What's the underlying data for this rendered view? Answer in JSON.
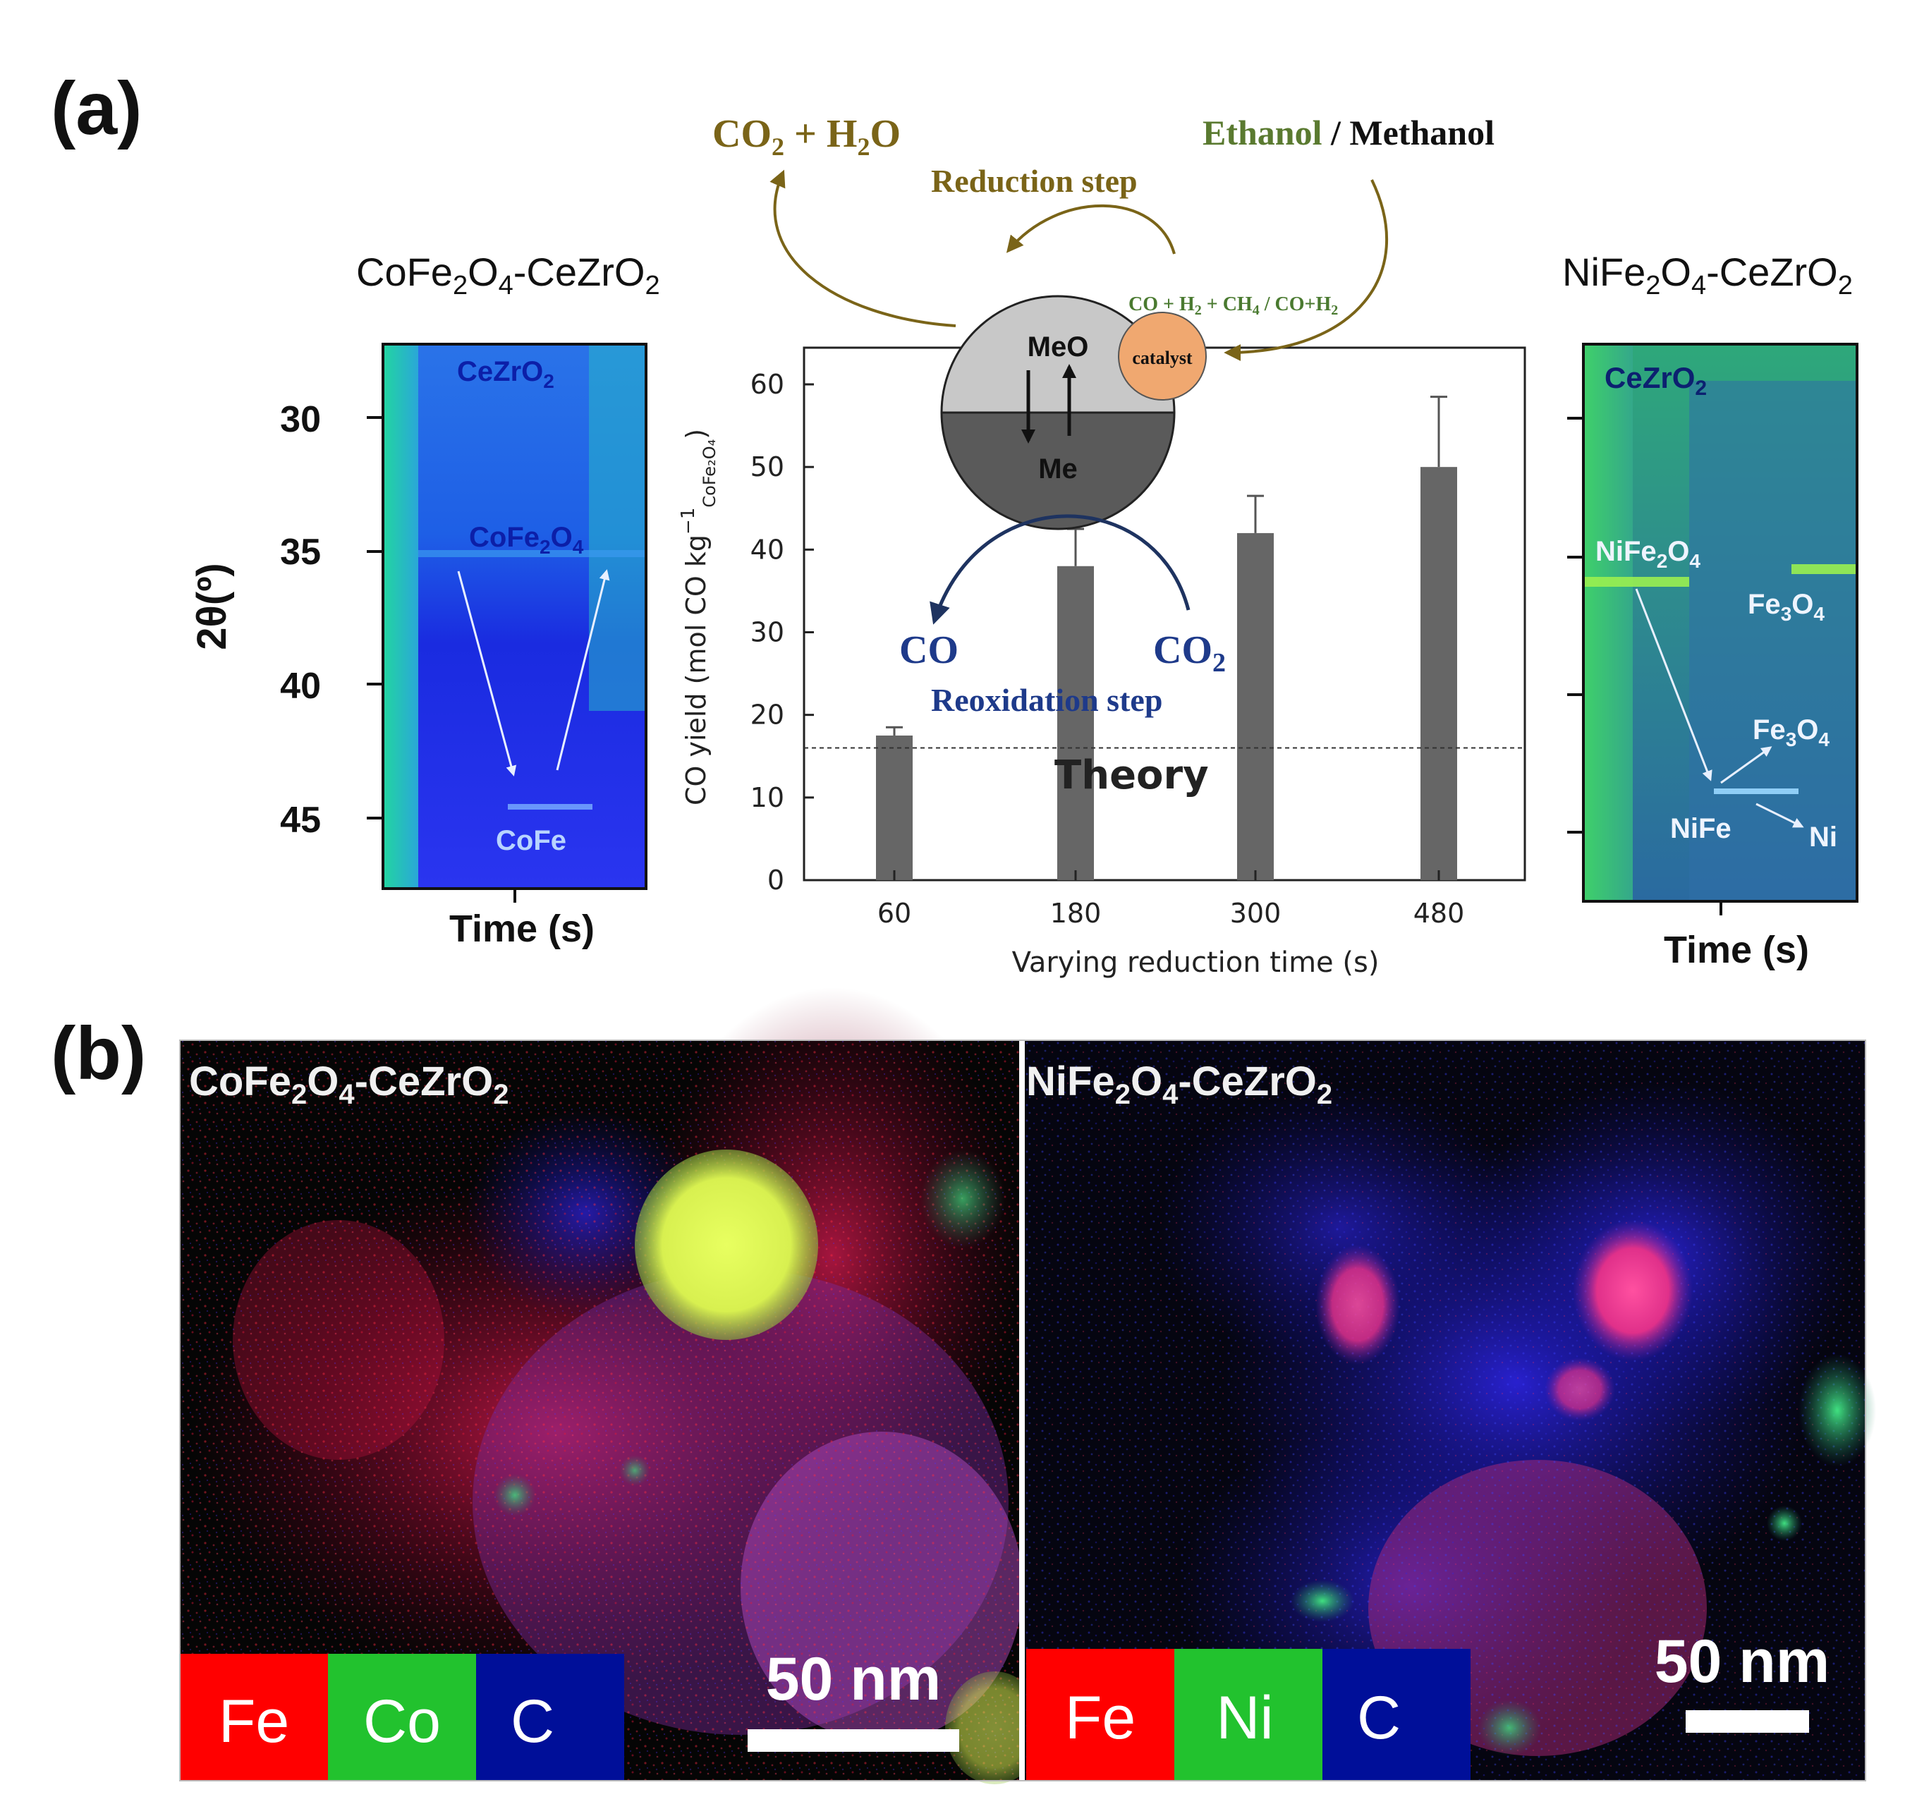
{
  "panels": {
    "a_label": "(a)",
    "b_label": "(b)"
  },
  "xrd_left": {
    "title_main": "CoFe",
    "title_sub1": "2",
    "title_mid": "O",
    "title_sub2": "4",
    "title_end": "-CeZrO",
    "title_sub3": "2",
    "yaxis_label": "2θ(º)",
    "yticks": [
      "30",
      "35",
      "40",
      "45"
    ],
    "xlabel": "Time (s)",
    "ann_cezro2": "CeZrO",
    "ann_cezro2_sub": "2",
    "ann_cofe2o4": "CoFe",
    "ann_cofe2o4_sub": "2",
    "ann_cofe2o4_o": "O",
    "ann_cofe2o4_sub2": "4",
    "ann_cofe": "CoFe"
  },
  "xrd_right": {
    "title_main": "NiFe",
    "title_sub1": "2",
    "title_mid": "O",
    "title_sub2": "4",
    "title_end": "-CeZrO",
    "title_sub3": "2",
    "xlabel": "Time (s)",
    "ann_cezro2": "CeZrO",
    "ann_cezro2_sub": "2",
    "ann_nife2o4": "NiFe",
    "ann_nife2o4_sub": "2",
    "ann_nife2o4_o": "O",
    "ann_nife2o4_sub2": "4",
    "ann_fe3o4_a": "Fe",
    "ann_fe3o4_a_sub": "3",
    "ann_fe3o4_a_o": "O",
    "ann_fe3o4_a_sub2": "4",
    "ann_fe3o4_b": "Fe",
    "ann_fe3o4_b_sub": "3",
    "ann_fe3o4_b_o": "O",
    "ann_fe3o4_b_sub2": "4",
    "ann_nife": "NiFe",
    "ann_ni": "Ni"
  },
  "scheme": {
    "co2_h2o": "CO",
    "co2_h2o_sub": "2",
    "co2_h2o_rest": " + H",
    "co2_h2o_sub2": "2",
    "co2_h2o_end": "O",
    "ethanol": "Ethanol",
    "slash": " / ",
    "methanol": "Methanol",
    "reduction_step": "Reduction step",
    "gas_products": "CO + H",
    "gas_products_sub": "2",
    "gas_products_mid": " + CH",
    "gas_products_sub2": "4",
    "gas_products_end": " / CO+H",
    "gas_products_sub3": "2",
    "meo": "MeO",
    "me": "Me",
    "catalyst": "catalyst",
    "co": "CO",
    "co2": "CO",
    "co2_sub": "2",
    "reoxidation_step": "Reoxidation step",
    "theory": "Theory"
  },
  "chart_data": {
    "type": "bar",
    "categories": [
      "60",
      "180",
      "300",
      "480"
    ],
    "values": [
      17.5,
      38,
      42,
      50
    ],
    "errors": [
      1,
      4.5,
      4.5,
      8.5
    ],
    "theory_line": 16,
    "ylim": [
      0,
      65
    ],
    "yticks": [
      "0",
      "10",
      "20",
      "30",
      "40",
      "50",
      "60"
    ],
    "xlabel": "Varying reduction time (s)",
    "ylabel": "CO yield (mol CO kg",
    "ylabel_sup": "−1",
    "ylabel_sub": "CoFe₂O₄",
    "ylabel_end": ")",
    "bar_color": "#666666"
  },
  "eds_left": {
    "title_main": "CoFe",
    "title_sub1": "2",
    "title_mid": "O",
    "title_sub2": "4",
    "title_end": "-CeZrO",
    "title_sub3": "2",
    "legend": [
      "Fe",
      "Co",
      "C"
    ],
    "legend_colors": [
      "#ff0000",
      "#22c22e",
      "#000f99"
    ],
    "scale": "50 nm"
  },
  "eds_right": {
    "title_main": "NiFe",
    "title_sub1": "2",
    "title_mid": "O",
    "title_sub2": "4",
    "title_end": "-CeZrO",
    "title_sub3": "2",
    "legend": [
      "Fe",
      "Ni",
      "C"
    ],
    "legend_colors": [
      "#ff0000",
      "#22c22e",
      "#000f99"
    ],
    "scale": "50 nm"
  }
}
